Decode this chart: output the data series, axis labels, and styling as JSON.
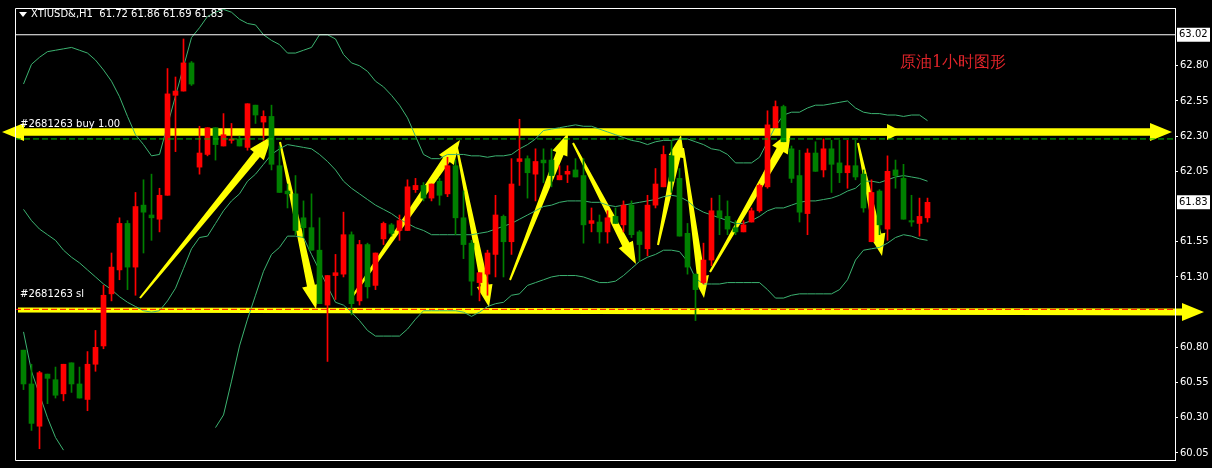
{
  "chart_data": {
    "type": "candlestick",
    "title": "XTIUSD&,H1  61.72 61.86 61.69 61.83",
    "annotations": [
      "原油1小时图形",
      "63.02",
      "61.83"
    ],
    "categories": [
      null,
      null,
      null,
      null,
      null,
      null,
      null,
      null,
      null,
      null,
      null,
      null,
      null,
      null,
      null,
      null,
      null,
      null,
      null,
      null,
      null,
      null,
      null,
      null,
      null,
      null,
      null,
      null,
      null,
      null,
      null,
      null,
      null,
      null,
      null,
      null,
      null,
      null,
      null,
      null,
      null,
      null,
      null,
      null,
      null,
      null,
      null,
      null,
      null,
      null,
      null,
      null,
      null,
      null,
      null,
      null,
      null,
      null,
      null,
      null,
      null,
      null,
      null,
      null,
      null,
      null,
      null,
      null,
      null,
      null,
      null,
      null,
      null,
      null,
      null,
      null,
      null,
      null,
      null,
      null,
      null,
      null,
      null,
      null,
      null,
      null,
      null,
      null,
      null,
      null,
      null,
      null,
      null,
      null,
      null,
      null,
      null,
      null,
      null,
      null,
      null,
      null,
      null,
      null,
      null,
      null,
      null,
      null,
      null,
      null,
      null,
      null,
      null,
      null
    ],
    "ohlc": [
      [
        60.78,
        60.78,
        60.5,
        60.54
      ],
      [
        60.54,
        60.68,
        60.21,
        60.26
      ],
      [
        60.24,
        60.63,
        60.08,
        60.62
      ],
      [
        60.61,
        60.61,
        60.4,
        60.58
      ],
      [
        60.57,
        60.66,
        60.44,
        60.46
      ],
      [
        60.47,
        60.68,
        60.42,
        60.68
      ],
      [
        60.69,
        60.69,
        60.48,
        60.54
      ],
      [
        60.54,
        60.66,
        60.44,
        60.44
      ],
      [
        60.43,
        60.77,
        60.35,
        60.68
      ],
      [
        60.68,
        60.92,
        60.63,
        60.8
      ],
      [
        60.81,
        61.24,
        60.79,
        61.17
      ],
      [
        61.18,
        61.47,
        61.13,
        61.37
      ],
      [
        61.35,
        61.72,
        61.28,
        61.68
      ],
      [
        61.68,
        61.7,
        61.21,
        61.37
      ],
      [
        61.37,
        61.9,
        61.17,
        61.8
      ],
      [
        61.81,
        61.99,
        61.47,
        61.76
      ],
      [
        61.74,
        62.03,
        61.56,
        61.72
      ],
      [
        61.71,
        61.93,
        61.62,
        61.88
      ],
      [
        61.88,
        62.78,
        61.88,
        62.6
      ],
      [
        62.59,
        62.72,
        62.19,
        62.62
      ],
      [
        62.62,
        62.99,
        62.62,
        62.82
      ],
      [
        62.82,
        62.83,
        62.66,
        62.67
      ],
      [
        62.08,
        62.37,
        62.03,
        62.18
      ],
      [
        62.17,
        62.36,
        62.16,
        62.36
      ],
      [
        62.36,
        62.36,
        62.13,
        62.24
      ],
      [
        62.23,
        62.46,
        62.23,
        62.31
      ],
      [
        62.27,
        62.39,
        62.25,
        62.28
      ],
      [
        62.28,
        62.3,
        62.23,
        62.23
      ],
      [
        62.22,
        62.53,
        62.2,
        62.53
      ],
      [
        62.52,
        62.52,
        62.39,
        62.45
      ],
      [
        62.4,
        62.48,
        62.27,
        62.44
      ],
      [
        62.44,
        62.52,
        62.06,
        62.1
      ],
      [
        62.09,
        62.23,
        61.9,
        61.9
      ],
      [
        61.91,
        61.96,
        61.79,
        61.89
      ],
      [
        61.89,
        62.02,
        61.6,
        61.63
      ],
      [
        61.72,
        61.84,
        61.58,
        61.65
      ],
      [
        61.65,
        61.89,
        61.49,
        61.49
      ],
      [
        61.49,
        61.72,
        61.11,
        61.11
      ],
      [
        61.1,
        61.31,
        60.7,
        61.31
      ],
      [
        61.31,
        61.46,
        61.14,
        61.33
      ],
      [
        61.32,
        61.76,
        61.3,
        61.6
      ],
      [
        61.6,
        61.62,
        61.03,
        61.11
      ],
      [
        61.13,
        61.56,
        61.1,
        61.53
      ],
      [
        61.53,
        61.54,
        61.15,
        61.23
      ],
      [
        61.24,
        61.47,
        61.21,
        61.47
      ],
      [
        61.57,
        61.69,
        61.53,
        61.68
      ],
      [
        61.67,
        61.68,
        61.59,
        61.61
      ],
      [
        61.63,
        61.74,
        61.56,
        61.7
      ],
      [
        61.63,
        61.99,
        61.63,
        61.94
      ],
      [
        61.92,
        62.0,
        61.9,
        61.95
      ],
      [
        61.95,
        61.97,
        61.84,
        61.86
      ],
      [
        61.86,
        61.96,
        61.84,
        61.96
      ],
      [
        61.98,
        62.0,
        61.81,
        61.88
      ],
      [
        61.89,
        62.15,
        61.87,
        62.09
      ],
      [
        62.09,
        62.13,
        61.6,
        61.72
      ],
      [
        61.72,
        61.91,
        61.43,
        61.53
      ],
      [
        61.54,
        61.56,
        61.17,
        61.27
      ],
      [
        61.26,
        61.33,
        61.13,
        61.33
      ],
      [
        61.32,
        61.49,
        61.17,
        61.47
      ],
      [
        61.46,
        61.88,
        61.3,
        61.74
      ],
      [
        61.73,
        61.74,
        61.3,
        61.55
      ],
      [
        61.55,
        62.14,
        61.46,
        61.96
      ],
      [
        62.12,
        62.42,
        61.95,
        62.14
      ],
      [
        62.14,
        62.16,
        61.86,
        62.04
      ],
      [
        62.03,
        62.21,
        61.84,
        62.12
      ],
      [
        62.13,
        62.21,
        61.97,
        62.11
      ],
      [
        62.13,
        62.21,
        61.94,
        62.02
      ],
      [
        61.99,
        62.09,
        61.99,
        62.02
      ],
      [
        62.03,
        62.09,
        61.97,
        62.05
      ],
      [
        62.06,
        62.14,
        62.01,
        62.01
      ],
      [
        62.02,
        62.14,
        61.54,
        61.67
      ],
      [
        61.68,
        61.79,
        61.62,
        61.7
      ],
      [
        61.69,
        61.74,
        61.54,
        61.62
      ],
      [
        61.62,
        61.77,
        61.54,
        61.72
      ],
      [
        61.73,
        61.79,
        61.68,
        61.68
      ],
      [
        61.67,
        61.84,
        61.62,
        61.81
      ],
      [
        61.81,
        61.84,
        61.58,
        61.6
      ],
      [
        61.62,
        61.63,
        61.41,
        61.53
      ],
      [
        61.5,
        61.88,
        61.45,
        61.81
      ],
      [
        61.81,
        62.07,
        61.79,
        61.96
      ],
      [
        61.94,
        62.23,
        61.94,
        62.17
      ],
      [
        62.16,
        62.27,
        61.9,
        61.98
      ],
      [
        62.0,
        62.07,
        61.59,
        61.59
      ],
      [
        61.61,
        61.68,
        61.32,
        61.37
      ],
      [
        61.32,
        61.32,
        60.99,
        61.21
      ],
      [
        61.26,
        61.54,
        61.25,
        61.42
      ],
      [
        61.42,
        61.86,
        61.38,
        61.77
      ],
      [
        61.77,
        61.88,
        61.6,
        61.72
      ],
      [
        61.73,
        61.84,
        61.6,
        61.64
      ],
      [
        61.65,
        61.7,
        61.6,
        61.62
      ],
      [
        61.62,
        61.7,
        61.62,
        61.67
      ],
      [
        61.69,
        61.79,
        61.69,
        61.77
      ],
      [
        61.77,
        61.96,
        61.76,
        61.95
      ],
      [
        61.94,
        62.48,
        61.93,
        62.38
      ],
      [
        62.36,
        62.55,
        62.36,
        62.51
      ],
      [
        62.51,
        62.52,
        62.26,
        62.26
      ],
      [
        62.21,
        62.23,
        61.97,
        62.0
      ],
      [
        62.02,
        62.2,
        61.69,
        61.76
      ],
      [
        61.75,
        62.21,
        61.6,
        62.18
      ],
      [
        62.18,
        62.26,
        62.05,
        62.05
      ],
      [
        62.06,
        62.28,
        62.01,
        62.21
      ],
      [
        62.21,
        62.27,
        61.9,
        62.1
      ],
      [
        62.11,
        62.27,
        61.97,
        62.04
      ],
      [
        62.04,
        62.27,
        61.93,
        62.09
      ],
      [
        62.09,
        62.27,
        61.99,
        62.01
      ],
      [
        62.03,
        62.06,
        61.76,
        61.79
      ],
      [
        61.55,
        61.99,
        61.55,
        61.9
      ],
      [
        61.91,
        61.92,
        61.6,
        61.67
      ],
      [
        61.64,
        62.16,
        61.56,
        62.05
      ],
      [
        62.06,
        62.13,
        61.93,
        62.02
      ],
      [
        62.0,
        62.1,
        61.71,
        61.71
      ],
      [
        61.7,
        61.88,
        61.66,
        61.69
      ],
      [
        61.68,
        61.86,
        61.59,
        61.73
      ],
      [
        61.72,
        61.86,
        61.69,
        61.83
      ]
    ],
    "colors": [
      "#008000",
      "#008000",
      "#ff0000",
      "#008000",
      "#008000",
      "#ff0000",
      "#008000",
      "#008000",
      "#ff0000",
      "#ff0000",
      "#ff0000",
      "#ff0000",
      "#ff0000",
      "#008000",
      "#ff0000",
      "#008000",
      "#008000",
      "#ff0000",
      "#ff0000",
      "#ff0000",
      "#ff0000",
      "#008000",
      "#ff0000",
      "#ff0000",
      "#008000",
      "#ff0000",
      "#ff0000",
      "#008000",
      "#ff0000",
      "#008000",
      "#ff0000",
      "#008000",
      "#008000",
      "#008000",
      "#008000",
      "#008000",
      "#008000",
      "#008000",
      "#ff0000",
      "#ff0000",
      "#ff0000",
      "#008000",
      "#ff0000",
      "#008000",
      "#ff0000",
      "#ff0000",
      "#008000",
      "#ff0000",
      "#ff0000",
      "#ff0000",
      "#008000",
      "#ff0000",
      "#008000",
      "#ff0000",
      "#008000",
      "#008000",
      "#008000",
      "#ff0000",
      "#ff0000",
      "#ff0000",
      "#008000",
      "#ff0000",
      "#ff0000",
      "#008000",
      "#ff0000",
      "#008000",
      "#008000",
      "#ff0000",
      "#ff0000",
      "#008000",
      "#008000",
      "#ff0000",
      "#008000",
      "#ff0000",
      "#008000",
      "#ff0000",
      "#008000",
      "#008000",
      "#ff0000",
      "#ff0000",
      "#ff0000",
      "#008000",
      "#008000",
      "#008000",
      "#008000",
      "#ff0000",
      "#ff0000",
      "#008000",
      "#008000",
      "#008000",
      "#ff0000",
      "#ff0000",
      "#ff0000",
      "#ff0000",
      "#ff0000",
      "#008000",
      "#008000",
      "#008000",
      "#ff0000",
      "#008000",
      "#ff0000",
      "#008000",
      "#008000",
      "#ff0000",
      "#008000",
      "#008000",
      "#ff0000",
      "#008000",
      "#ff0000",
      "#008000",
      "#008000",
      "#008000",
      "#ff0000",
      "#ff0000"
    ],
    "series": [
      {
        "type": "line",
        "color": "#3cb371",
        "values": [
          62.67,
          62.81,
          62.86,
          62.9,
          62.91,
          62.92,
          62.93,
          62.91,
          62.89,
          62.84,
          62.77,
          62.69,
          62.58,
          62.44,
          62.31,
          62.24,
          62.16,
          62.17,
          null,
          null,
          null,
          63.0,
          63.07,
          63.15,
          63.18,
          63.2,
          63.18,
          63.13,
          63.1,
          63.09,
          63.02,
          62.98,
          62.95,
          62.89,
          62.89,
          62.91,
          62.93,
          63.02,
          63.02,
          62.99,
          62.88,
          62.82,
          62.8,
          62.76,
          62.69,
          62.65,
          62.59,
          62.52,
          62.43,
          62.3,
          62.17,
          62.14,
          62.14,
          62.17,
          62.17,
          62.17,
          62.16,
          62.16,
          62.15,
          62.16,
          62.16,
          62.17,
          62.21,
          62.24,
          62.28,
          62.34,
          62.35,
          62.36,
          62.37,
          62.38,
          62.37,
          62.37,
          62.35,
          62.33,
          62.31,
          62.29,
          62.27,
          62.26,
          62.24,
          62.26,
          62.27,
          62.27,
          62.28,
          62.28,
          62.26,
          62.24,
          62.21,
          62.2,
          62.17,
          62.11,
          62.11,
          62.11,
          62.15,
          null,
          62.37,
          62.45,
          62.47,
          62.47,
          62.5,
          62.52,
          62.52,
          62.53,
          62.54,
          62.55,
          62.5,
          62.47,
          62.46,
          62.46,
          62.45,
          62.45,
          62.44,
          62.45,
          62.45,
          62.41
        ]
      },
      {
        "type": "line",
        "color": "#3cb371",
        "values": [
          61.78,
          61.7,
          61.64,
          61.6,
          61.56,
          61.49,
          61.44,
          61.4,
          61.35,
          61.3,
          61.25,
          61.21,
          61.16,
          61.12,
          61.09,
          61.06,
          61.05,
          61.06,
          61.13,
          61.22,
          61.36,
          61.5,
          61.58,
          61.59,
          61.68,
          61.77,
          61.84,
          61.89,
          61.98,
          62.03,
          62.1,
          62.17,
          62.21,
          62.24,
          62.23,
          62.22,
          62.21,
          62.17,
          62.12,
          62.06,
          61.98,
          61.93,
          61.89,
          61.85,
          61.81,
          61.78,
          61.75,
          61.71,
          null,
          61.65,
          61.63,
          61.6,
          61.6,
          61.6,
          61.6,
          61.6,
          61.6,
          61.61,
          61.62,
          null,
          61.66,
          61.68,
          61.71,
          61.74,
          61.77,
          61.8,
          61.81,
          61.83,
          61.84,
          61.84,
          61.84,
          61.83,
          61.83,
          61.81,
          61.8,
          61.81,
          61.82,
          61.83,
          61.84,
          61.85,
          61.87,
          61.88,
          61.87,
          61.84,
          61.79,
          61.76,
          null,
          61.72,
          61.7,
          61.68,
          61.68,
          61.7,
          61.73,
          61.77,
          61.79,
          61.79,
          61.81,
          61.83,
          61.84,
          61.84,
          61.85,
          61.86,
          61.88,
          61.91,
          61.93,
          61.98,
          61.98,
          61.97,
          61.99,
          62.01,
          62.02,
          62.01,
          62.0,
          61.98
        ]
      },
      {
        "type": "line",
        "color": "#3cb371",
        "values": [
          60.91,
          60.63,
          null,
          60.3,
          60.16,
          60.07,
          null,
          null,
          null,
          null,
          null,
          null,
          null,
          null,
          null,
          null,
          null,
          null,
          null,
          null,
          null,
          null,
          null,
          null,
          null,
          null,
          null,
          null,
          null,
          null,
          null,
          null,
          null,
          null,
          null,
          null,
          null,
          null,
          null,
          null,
          null,
          null,
          null,
          null,
          null,
          null,
          null,
          null,
          null,
          null,
          null,
          null,
          null,
          null,
          null,
          null,
          null,
          null,
          null,
          null,
          null,
          null,
          null,
          null,
          null,
          null,
          null,
          null,
          null,
          null,
          null,
          null,
          null,
          null,
          null,
          null,
          null,
          null,
          null,
          null,
          null,
          null,
          null,
          null,
          null,
          null,
          null,
          null,
          null,
          null,
          null,
          null,
          null,
          null,
          null,
          null,
          null,
          null,
          null,
          null,
          null,
          null,
          null,
          null,
          null,
          null,
          null,
          null,
          null,
          null,
          null,
          null,
          null,
          null
        ]
      },
      {
        "type": "line",
        "color": "#3cb371",
        "values": [
          null,
          null,
          null,
          null,
          null,
          null,
          null,
          null,
          null,
          null,
          null,
          null,
          null,
          null,
          null,
          null,
          null,
          null,
          null,
          null,
          null,
          null,
          null,
          null,
          60.23,
          60.32,
          60.56,
          60.81,
          61.0,
          61.17,
          61.34,
          61.46,
          61.51,
          61.59,
          61.59,
          61.58,
          61.46,
          null,
          null,
          61.12,
          61.1,
          61.05,
          60.99,
          60.92,
          60.88,
          60.88,
          60.88,
          60.88,
          60.93,
          61.0,
          61.06,
          61.06,
          61.06,
          61.06,
          61.06,
          61.05,
          61.02,
          61.05,
          61.09,
          61.11,
          61.12,
          61.17,
          61.18,
          61.24,
          61.26,
          61.28,
          61.3,
          61.31,
          61.31,
          61.31,
          61.3,
          61.28,
          61.26,
          61.26,
          61.27,
          61.31,
          61.36,
          61.41,
          61.44,
          61.46,
          61.49,
          61.49,
          61.48,
          61.41,
          61.29,
          61.25,
          61.25,
          61.25,
          61.26,
          61.26,
          61.26,
          61.26,
          61.26,
          61.21,
          61.15,
          61.15,
          61.17,
          61.18,
          61.18,
          61.18,
          61.18,
          61.18,
          61.21,
          61.28,
          61.42,
          61.49,
          61.5,
          61.51,
          61.54,
          61.58,
          61.6,
          61.59,
          61.57,
          61.56
        ]
      }
    ],
    "ylim": [
      60.0,
      63.21
    ],
    "yticks": [
      60.05,
      {
        "value": 60.3,
        "label": "60.30"
      },
      60.55,
      {
        "value": 60.8,
        "label": "60.80"
      },
      {
        "value": 61.3,
        "label": "61.30"
      },
      61.55,
      62.05,
      {
        "value": 62.3,
        "label": "62.30"
      },
      62.55,
      {
        "value": 62.8,
        "label": "62.80"
      }
    ],
    "ref_lines": [
      {
        "axis": "y",
        "value": 63.02,
        "color": "#ffffff"
      },
      {
        "axis": "y",
        "value": 62.28,
        "label": "#2681263 buy 1.00",
        "color": "#00c000",
        "line_style": "dashed"
      },
      {
        "axis": "y",
        "value": 61.07,
        "label": "#2681263 sl",
        "color": "#ff0000",
        "line_style": "dashed"
      }
    ]
  }
}
